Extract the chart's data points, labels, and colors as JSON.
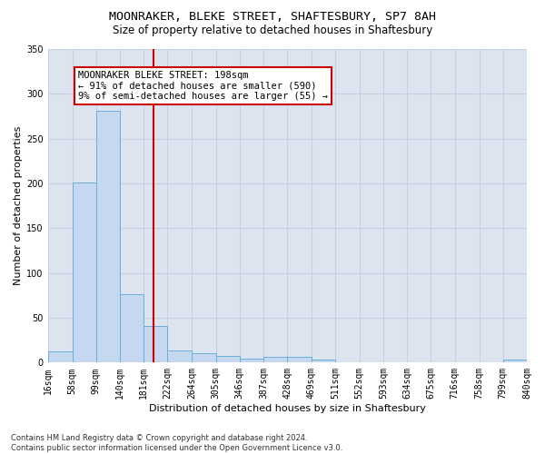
{
  "title1": "MOONRAKER, BLEKE STREET, SHAFTESBURY, SP7 8AH",
  "title2": "Size of property relative to detached houses in Shaftesbury",
  "xlabel": "Distribution of detached houses by size in Shaftesbury",
  "ylabel": "Number of detached properties",
  "footnote": "Contains HM Land Registry data © Crown copyright and database right 2024.\nContains public sector information licensed under the Open Government Licence v3.0.",
  "bar_edges": [
    16,
    58,
    99,
    140,
    181,
    222,
    264,
    305,
    346,
    387,
    428,
    469,
    511,
    552,
    593,
    634,
    675,
    716,
    758,
    799,
    840
  ],
  "bar_heights": [
    13,
    201,
    281,
    76,
    41,
    14,
    10,
    7,
    4,
    6,
    6,
    3,
    0,
    0,
    0,
    0,
    0,
    0,
    0,
    3
  ],
  "bar_color": "#c5d8ef",
  "bar_edge_color": "#6aaed6",
  "property_size": 198,
  "vline_color": "#cc0000",
  "annotation_text": "MOONRAKER BLEKE STREET: 198sqm\n← 91% of detached houses are smaller (590)\n9% of semi-detached houses are larger (55) →",
  "annotation_box_color": "#cc0000",
  "annotation_bg": "#ffffff",
  "ylim": [
    0,
    350
  ],
  "yticks": [
    0,
    50,
    100,
    150,
    200,
    250,
    300,
    350
  ],
  "grid_color": "#c8d0e0",
  "bg_color": "#dce4f0",
  "title1_fontsize": 9.5,
  "title2_fontsize": 8.5,
  "xlabel_fontsize": 8,
  "ylabel_fontsize": 8,
  "tick_fontsize": 7,
  "annot_fontsize": 7.5,
  "footnote_fontsize": 6
}
